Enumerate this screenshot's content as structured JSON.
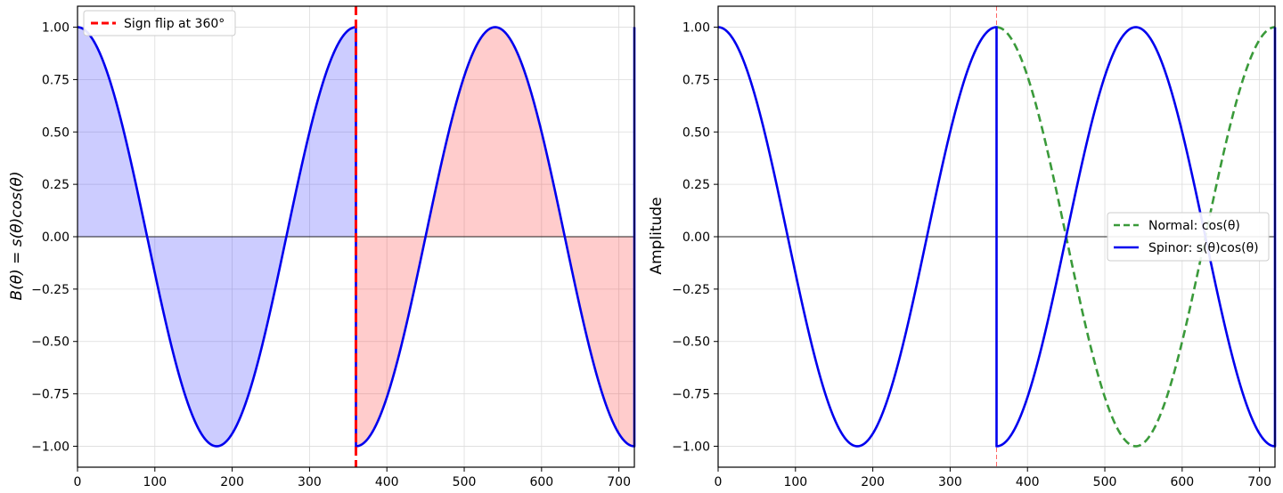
{
  "chart_data": [
    {
      "type": "line",
      "title": "",
      "xlabel": "",
      "ylabel": "B(θ) = s(θ)cos(θ)",
      "xlim": [
        0,
        720
      ],
      "ylim": [
        -1.1,
        1.1
      ],
      "xticks": [
        "0",
        "100",
        "200",
        "300",
        "400",
        "500",
        "600",
        "700"
      ],
      "yticks": [
        "1.00",
        "0.75",
        "0.50",
        "0.25",
        "0.00",
        "−0.25",
        "−0.50",
        "−0.75",
        "−1.00"
      ],
      "grid": true,
      "legend_position": "top-left",
      "series": [
        {
          "name": "",
          "function": "s(θ)cos(θ)",
          "x_range": [
            0,
            720
          ],
          "color": "#0000ee",
          "style": "solid"
        }
      ],
      "fills": [
        {
          "x_range": [
            0,
            360
          ],
          "color": "#0000ff",
          "opacity": 0.2
        },
        {
          "x_range": [
            360,
            720
          ],
          "color": "#ff0000",
          "opacity": 0.2
        }
      ],
      "vlines": [
        {
          "x": 360,
          "color": "#ff0000",
          "style": "dashed",
          "label": "Sign flip at 360°"
        }
      ],
      "hlines": [
        {
          "y": 0,
          "color": "#000000"
        }
      ]
    },
    {
      "type": "line",
      "title": "",
      "xlabel": "",
      "ylabel": "Amplitude",
      "xlim": [
        0,
        720
      ],
      "ylim": [
        -1.1,
        1.1
      ],
      "xticks": [
        "0",
        "100",
        "200",
        "300",
        "400",
        "500",
        "600",
        "700"
      ],
      "yticks": [
        "1.00",
        "0.75",
        "0.50",
        "0.25",
        "0.00",
        "−0.25",
        "−0.50",
        "−0.75",
        "−1.00"
      ],
      "grid": true,
      "legend_position": "right",
      "series": [
        {
          "name": "Normal: cos(θ)",
          "function": "cos(θ)",
          "x_range": [
            360,
            720
          ],
          "color": "#3a9a3a",
          "style": "dashed"
        },
        {
          "name": "Spinor: s(θ)cos(θ)",
          "function": "s(θ)cos(θ)",
          "x_range": [
            0,
            720
          ],
          "color": "#0000ee",
          "style": "solid"
        }
      ],
      "vlines": [
        {
          "x": 360,
          "color": "#ff0000",
          "style": "dashed-thin",
          "label": ""
        }
      ],
      "hlines": [
        {
          "y": 0,
          "color": "#000000"
        }
      ]
    }
  ]
}
